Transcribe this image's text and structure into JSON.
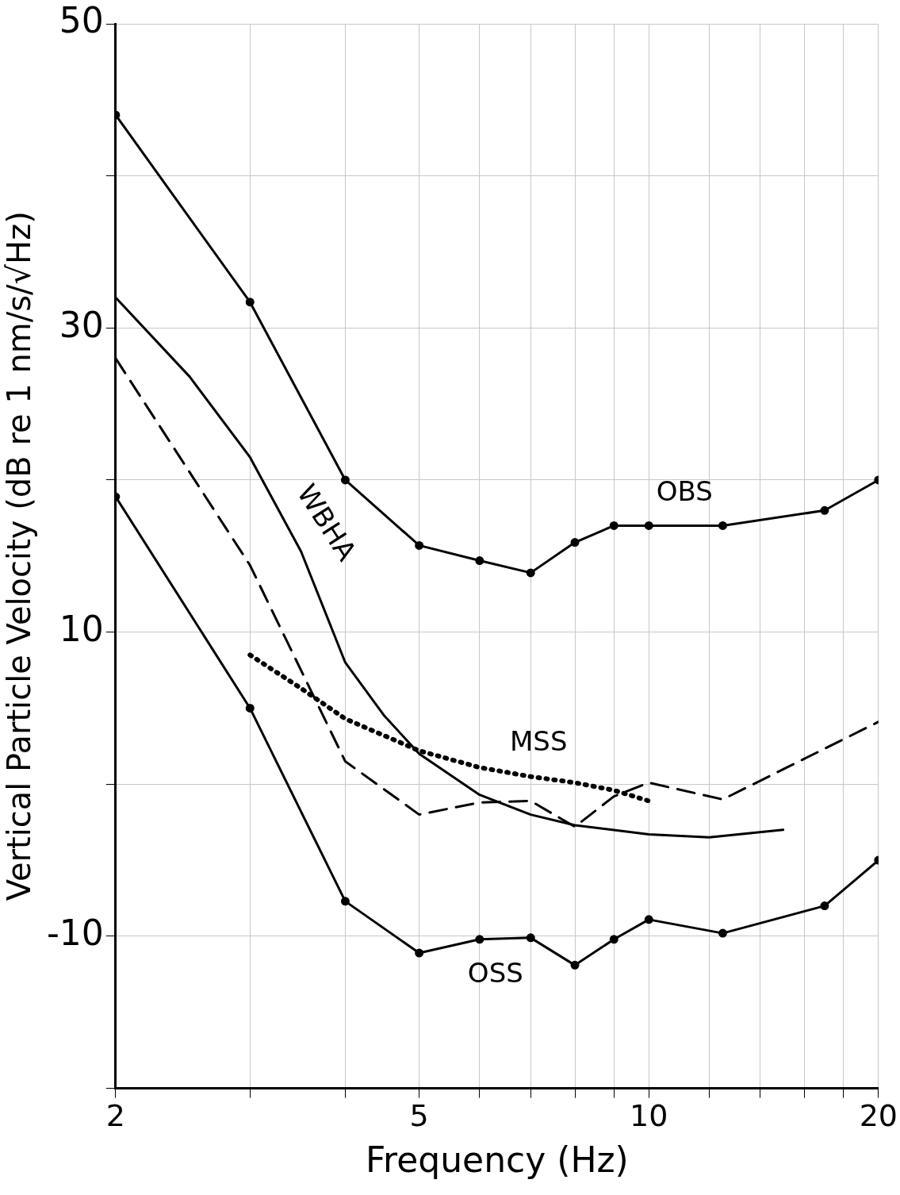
{
  "chart_data": {
    "type": "line",
    "xlabel": "Frequency (Hz)",
    "ylabel": "Vertical Particle Velocity (dB re 1 nm/s/√Hz)",
    "log": "x",
    "grid": true,
    "legend": false,
    "xlim": [
      2,
      20
    ],
    "xticks": [
      2,
      {
        "value": 3,
        "label": null
      },
      {
        "value": 4,
        "label": null
      },
      5,
      {
        "value": 6,
        "label": null
      },
      {
        "value": 7,
        "label": null
      },
      {
        "value": 8,
        "label": null
      },
      {
        "value": 9,
        "label": null
      },
      10,
      {
        "value": 12,
        "label": null
      },
      {
        "value": 14,
        "label": null
      },
      {
        "value": 16,
        "label": null
      },
      {
        "value": 18,
        "label": null
      },
      20
    ],
    "ylim": [
      -20,
      50
    ],
    "yticks": [
      {
        "value": -20,
        "label": null
      },
      -10,
      {
        "value": 0,
        "label": null
      },
      10,
      {
        "value": 20,
        "label": null
      },
      30,
      {
        "value": 40,
        "label": null
      },
      50
    ],
    "series": [
      {
        "name": "OBS",
        "color": "#000000",
        "marker": "circle",
        "line_style": "solid",
        "x": [
          2,
          3,
          4,
          5,
          6,
          7,
          8,
          9,
          10,
          12.5,
          17,
          20
        ],
        "values": [
          44,
          31.7,
          20,
          15.7,
          14.7,
          13.9,
          15.9,
          17,
          17,
          17,
          18,
          20
        ]
      },
      {
        "name": "WBHA",
        "color": "#000000",
        "marker": "none",
        "line_style": "solid",
        "x": [
          2,
          2.5,
          3,
          3.5,
          4,
          4.5,
          5,
          6,
          7,
          8,
          10,
          12,
          15
        ],
        "values": [
          32,
          26.8,
          21.5,
          15.3,
          8,
          4.5,
          2,
          -0.7,
          -2,
          -2.7,
          -3.3,
          -3.5,
          -3
        ]
      },
      {
        "color": "#000000",
        "marker": "none",
        "line_style": "dashed",
        "x": [
          2,
          3,
          4,
          5,
          6,
          7,
          8,
          9,
          10,
          12.5,
          20
        ],
        "values": [
          28,
          14.4,
          1.5,
          -2,
          -1.2,
          -1.1,
          -2.8,
          -0.8,
          0.1,
          -1,
          4.1
        ]
      },
      {
        "name": "MSS",
        "color": "#000000",
        "marker": "none",
        "line_style": "dotted",
        "x": [
          3,
          3.5,
          4,
          5,
          6,
          7,
          8,
          9,
          10
        ],
        "values": [
          8.5,
          6.3,
          4.3,
          2.2,
          1.1,
          0.5,
          0.1,
          -0.4,
          -1.1
        ]
      },
      {
        "name": "OSS",
        "color": "#000000",
        "marker": "circle",
        "line_style": "solid",
        "x": [
          2,
          3,
          4,
          5,
          6,
          7,
          8,
          9,
          10,
          12.5,
          17,
          20
        ],
        "values": [
          18.9,
          5,
          -7.7,
          -11.1,
          -10.2,
          -10.1,
          -11.9,
          -10.2,
          -8.9,
          -9.8,
          -8,
          -5
        ]
      }
    ]
  }
}
